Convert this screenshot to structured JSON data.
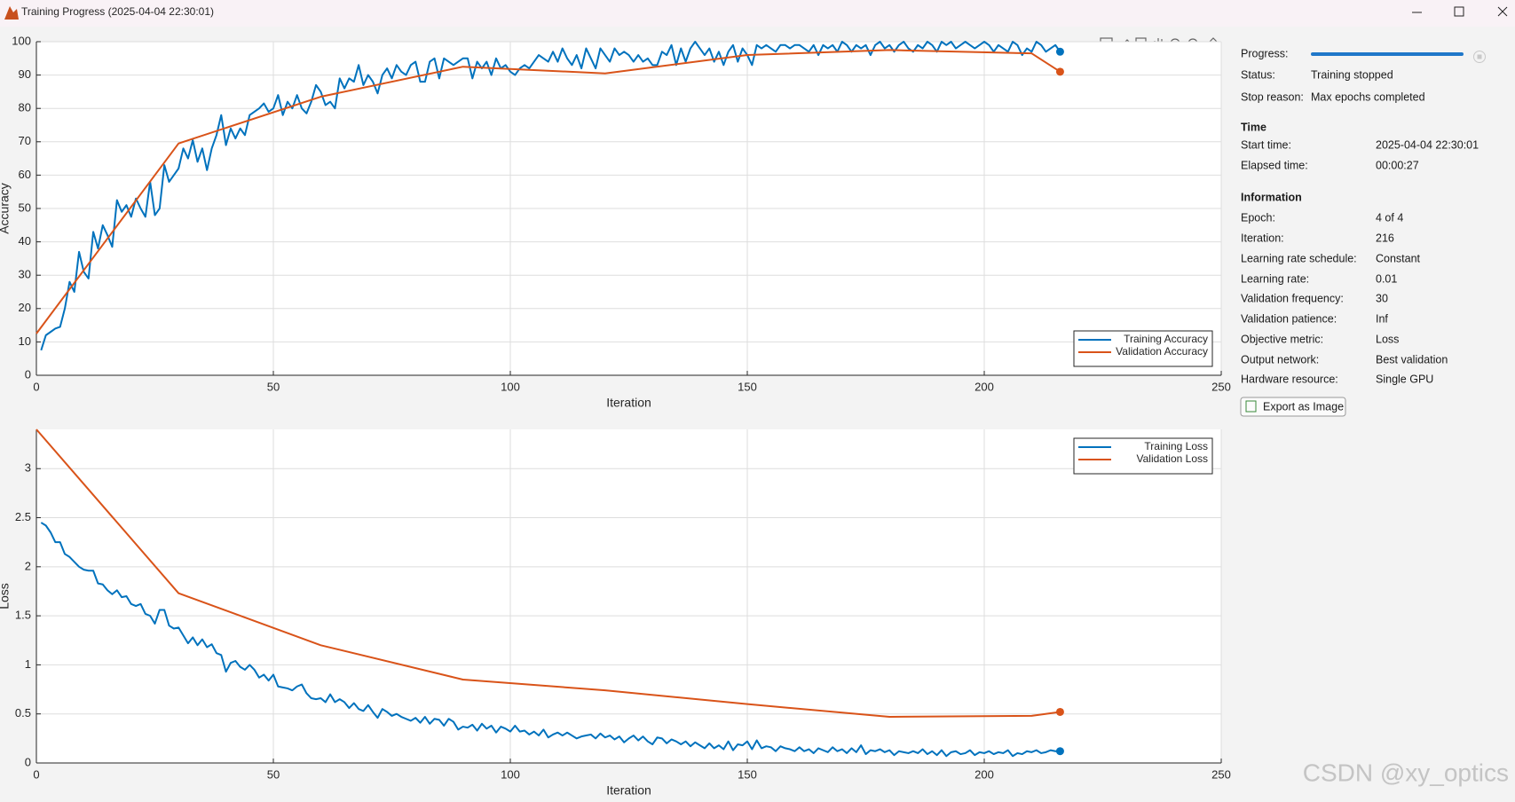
{
  "window": {
    "title": "Training Progress (2025-04-04 22:30:01)"
  },
  "chart_data": [
    {
      "type": "line",
      "xlabel": "Iteration",
      "ylabel": "Accuracy",
      "xlim": [
        0,
        250
      ],
      "xticks": [
        0,
        50,
        100,
        150,
        200,
        250
      ],
      "ylim": [
        0,
        100
      ],
      "yticks": [
        0,
        10,
        20,
        30,
        40,
        50,
        60,
        70,
        80,
        90,
        100
      ],
      "grid": true,
      "legend": "lower right",
      "series": [
        {
          "name": "Training Accuracy",
          "color": "#0072bd",
          "x": [
            1,
            2,
            3,
            4,
            5,
            6,
            7,
            8,
            9,
            10,
            11,
            12,
            13,
            14,
            15,
            16,
            17,
            18,
            19,
            20,
            21,
            22,
            23,
            24,
            25,
            26,
            27,
            28,
            29,
            30,
            31,
            32,
            33,
            34,
            35,
            36,
            37,
            38,
            39,
            40,
            41,
            42,
            43,
            44,
            45,
            46,
            47,
            48,
            49,
            50,
            51,
            52,
            53,
            54,
            55,
            56,
            57,
            58,
            59,
            60,
            61,
            62,
            63,
            64,
            65,
            66,
            67,
            68,
            69,
            70,
            71,
            72,
            73,
            74,
            75,
            76,
            77,
            78,
            79,
            80,
            81,
            82,
            83,
            84,
            85,
            86,
            87,
            88,
            89,
            90,
            91,
            92,
            93,
            94,
            95,
            96,
            97,
            98,
            99,
            100,
            101,
            102,
            103,
            104,
            105,
            106,
            107,
            108,
            109,
            110,
            111,
            112,
            113,
            114,
            115,
            116,
            117,
            118,
            119,
            120,
            121,
            122,
            123,
            124,
            125,
            126,
            127,
            128,
            129,
            130,
            131,
            132,
            133,
            134,
            135,
            136,
            137,
            138,
            139,
            140,
            141,
            142,
            143,
            144,
            145,
            146,
            147,
            148,
            149,
            150,
            151,
            152,
            153,
            154,
            155,
            156,
            157,
            158,
            159,
            160,
            161,
            162,
            163,
            164,
            165,
            166,
            167,
            168,
            169,
            170,
            171,
            172,
            173,
            174,
            175,
            176,
            177,
            178,
            179,
            180,
            181,
            182,
            183,
            184,
            185,
            186,
            187,
            188,
            189,
            190,
            191,
            192,
            193,
            194,
            195,
            196,
            197,
            198,
            199,
            200,
            201,
            202,
            203,
            204,
            205,
            206,
            207,
            208,
            209,
            210,
            211,
            212,
            213,
            214,
            215,
            216
          ],
          "values": [
            7.5,
            12,
            13,
            14,
            14.5,
            20,
            28,
            25,
            37,
            31,
            29,
            43,
            38,
            45,
            42,
            38.5,
            52.5,
            49,
            51,
            47.5,
            53,
            50,
            47.5,
            58,
            48,
            50,
            63,
            58,
            60,
            62,
            68,
            65,
            70.5,
            64,
            68,
            61.5,
            68,
            72,
            78,
            69,
            74,
            71,
            74,
            72,
            78,
            79,
            80,
            81.5,
            79,
            80,
            84,
            78,
            82,
            80,
            84,
            80,
            78.5,
            82,
            87,
            85,
            81,
            82,
            80,
            89,
            86,
            89,
            88,
            93,
            87,
            90,
            88,
            84.5,
            90,
            92,
            89,
            93,
            91,
            90,
            93,
            94,
            88,
            88,
            94,
            95,
            89,
            95,
            94,
            93,
            94,
            95,
            95,
            89,
            94,
            92,
            94,
            90,
            95,
            92,
            93,
            91,
            90,
            92,
            93,
            92,
            94,
            96,
            95,
            94,
            97,
            94,
            98,
            95,
            93,
            96,
            92,
            98,
            95,
            92,
            98,
            96,
            94,
            98,
            96,
            97,
            96,
            94,
            96,
            94,
            95,
            93,
            93,
            97,
            96,
            99,
            93,
            98,
            94,
            98,
            100,
            98,
            96,
            98,
            94,
            97,
            93,
            97,
            99,
            94,
            98,
            96,
            93,
            99,
            98,
            99,
            98,
            97,
            99,
            99,
            98,
            99,
            99,
            98,
            97,
            99,
            96,
            99,
            98,
            99,
            97,
            100,
            99,
            97,
            99,
            98,
            99,
            96,
            99,
            100,
            98,
            99,
            97,
            99,
            100,
            98,
            97,
            99,
            98,
            100,
            99,
            97,
            100,
            99,
            100,
            98,
            99,
            100,
            99,
            98,
            99,
            100,
            99,
            97,
            99,
            98,
            97,
            100,
            99,
            96,
            98,
            97,
            100,
            99,
            97,
            98,
            99,
            97
          ]
        },
        {
          "name": "Validation Accuracy",
          "color": "#d95319",
          "x": [
            0,
            30,
            60,
            90,
            120,
            150,
            180,
            210,
            216
          ],
          "values": [
            12.5,
            69.5,
            83.5,
            92.5,
            90.5,
            96,
            97.5,
            96.5,
            91
          ]
        }
      ]
    },
    {
      "type": "line",
      "xlabel": "Iteration",
      "ylabel": "Loss",
      "xlim": [
        0,
        250
      ],
      "xticks": [
        0,
        50,
        100,
        150,
        200,
        250
      ],
      "ylim": [
        0,
        3.4
      ],
      "yticks": [
        0,
        0.5,
        1,
        1.5,
        2,
        2.5,
        3
      ],
      "grid": true,
      "legend": "upper right",
      "series": [
        {
          "name": "Training Loss",
          "color": "#0072bd",
          "x": [
            1,
            2,
            3,
            4,
            5,
            6,
            7,
            8,
            9,
            10,
            11,
            12,
            13,
            14,
            15,
            16,
            17,
            18,
            19,
            20,
            21,
            22,
            23,
            24,
            25,
            26,
            27,
            28,
            29,
            30,
            31,
            32,
            33,
            34,
            35,
            36,
            37,
            38,
            39,
            40,
            41,
            42,
            43,
            44,
            45,
            46,
            47,
            48,
            49,
            50,
            51,
            52,
            53,
            54,
            55,
            56,
            57,
            58,
            59,
            60,
            61,
            62,
            63,
            64,
            65,
            66,
            67,
            68,
            69,
            70,
            71,
            72,
            73,
            74,
            75,
            76,
            77,
            78,
            79,
            80,
            81,
            82,
            83,
            84,
            85,
            86,
            87,
            88,
            89,
            90,
            91,
            92,
            93,
            94,
            95,
            96,
            97,
            98,
            99,
            100,
            101,
            102,
            103,
            104,
            105,
            106,
            107,
            108,
            109,
            110,
            111,
            112,
            113,
            114,
            115,
            116,
            117,
            118,
            119,
            120,
            121,
            122,
            123,
            124,
            125,
            126,
            127,
            128,
            129,
            130,
            131,
            132,
            133,
            134,
            135,
            136,
            137,
            138,
            139,
            140,
            141,
            142,
            143,
            144,
            145,
            146,
            147,
            148,
            149,
            150,
            151,
            152,
            153,
            154,
            155,
            156,
            157,
            158,
            159,
            160,
            161,
            162,
            163,
            164,
            165,
            166,
            167,
            168,
            169,
            170,
            171,
            172,
            173,
            174,
            175,
            176,
            177,
            178,
            179,
            180,
            181,
            182,
            183,
            184,
            185,
            186,
            187,
            188,
            189,
            190,
            191,
            192,
            193,
            194,
            195,
            196,
            197,
            198,
            199,
            200,
            201,
            202,
            203,
            204,
            205,
            206,
            207,
            208,
            209,
            210,
            211,
            212,
            213,
            214,
            215,
            216
          ],
          "values": [
            2.45,
            2.42,
            2.35,
            2.25,
            2.25,
            2.13,
            2.1,
            2.05,
            2.0,
            1.97,
            1.96,
            1.96,
            1.83,
            1.82,
            1.76,
            1.72,
            1.76,
            1.69,
            1.7,
            1.62,
            1.6,
            1.62,
            1.52,
            1.5,
            1.42,
            1.56,
            1.56,
            1.4,
            1.37,
            1.38,
            1.3,
            1.22,
            1.28,
            1.2,
            1.26,
            1.18,
            1.21,
            1.12,
            1.1,
            0.93,
            1.02,
            1.04,
            0.98,
            0.95,
            1.0,
            0.95,
            0.87,
            0.9,
            0.84,
            0.9,
            0.78,
            0.77,
            0.76,
            0.74,
            0.78,
            0.8,
            0.71,
            0.66,
            0.65,
            0.66,
            0.62,
            0.7,
            0.62,
            0.65,
            0.62,
            0.56,
            0.61,
            0.55,
            0.53,
            0.59,
            0.52,
            0.46,
            0.55,
            0.52,
            0.48,
            0.5,
            0.47,
            0.45,
            0.43,
            0.46,
            0.41,
            0.47,
            0.4,
            0.45,
            0.44,
            0.38,
            0.45,
            0.42,
            0.34,
            0.37,
            0.36,
            0.39,
            0.33,
            0.4,
            0.35,
            0.38,
            0.31,
            0.37,
            0.35,
            0.32,
            0.38,
            0.32,
            0.33,
            0.29,
            0.32,
            0.28,
            0.34,
            0.26,
            0.29,
            0.31,
            0.28,
            0.31,
            0.28,
            0.25,
            0.27,
            0.28,
            0.29,
            0.25,
            0.3,
            0.26,
            0.28,
            0.24,
            0.27,
            0.21,
            0.25,
            0.28,
            0.23,
            0.27,
            0.22,
            0.19,
            0.26,
            0.25,
            0.2,
            0.24,
            0.22,
            0.19,
            0.22,
            0.17,
            0.21,
            0.18,
            0.15,
            0.2,
            0.15,
            0.18,
            0.14,
            0.22,
            0.13,
            0.19,
            0.18,
            0.22,
            0.14,
            0.23,
            0.15,
            0.17,
            0.16,
            0.12,
            0.17,
            0.15,
            0.14,
            0.12,
            0.16,
            0.12,
            0.14,
            0.1,
            0.15,
            0.13,
            0.11,
            0.16,
            0.12,
            0.14,
            0.1,
            0.15,
            0.11,
            0.18,
            0.09,
            0.13,
            0.12,
            0.14,
            0.11,
            0.13,
            0.08,
            0.12,
            0.11,
            0.1,
            0.12,
            0.1,
            0.14,
            0.09,
            0.12,
            0.08,
            0.13,
            0.07,
            0.11,
            0.12,
            0.09,
            0.1,
            0.13,
            0.08,
            0.11,
            0.1,
            0.12,
            0.09,
            0.11,
            0.1,
            0.13,
            0.07,
            0.1,
            0.09,
            0.12,
            0.11,
            0.13,
            0.1,
            0.11,
            0.13,
            0.12,
            0.12
          ]
        },
        {
          "name": "Validation Loss",
          "color": "#d95319",
          "x": [
            0,
            30,
            60,
            90,
            120,
            150,
            180,
            210,
            216
          ],
          "values": [
            3.4,
            1.73,
            1.2,
            0.85,
            0.74,
            0.6,
            0.47,
            0.48,
            0.52
          ]
        }
      ]
    }
  ],
  "panel": {
    "progress_label": "Progress:",
    "status": [
      {
        "label": "Status:",
        "value": "Training stopped"
      },
      {
        "label": "Stop reason:",
        "value": "Max epochs completed"
      }
    ],
    "sections": [
      {
        "title": "Time",
        "rows": [
          {
            "label": "Start time:",
            "value": "2025-04-04 22:30:01"
          },
          {
            "label": "Elapsed time:",
            "value": "00:00:27"
          }
        ]
      },
      {
        "title": "Information",
        "rows": [
          {
            "label": "Epoch:",
            "value": "4 of 4"
          },
          {
            "label": "Iteration:",
            "value": "216"
          },
          {
            "label": "Learning rate schedule:",
            "value": "Constant"
          },
          {
            "label": "Learning rate:",
            "value": "0.01"
          },
          {
            "label": "Validation frequency:",
            "value": "30"
          },
          {
            "label": "Validation patience:",
            "value": "Inf"
          },
          {
            "label": "Objective metric:",
            "value": "Loss"
          },
          {
            "label": "Output network:",
            "value": "Best validation"
          },
          {
            "label": "Hardware resource:",
            "value": "Single GPU"
          }
        ]
      }
    ],
    "button": "Export as Image"
  },
  "watermark": "CSDN @xy_optics"
}
